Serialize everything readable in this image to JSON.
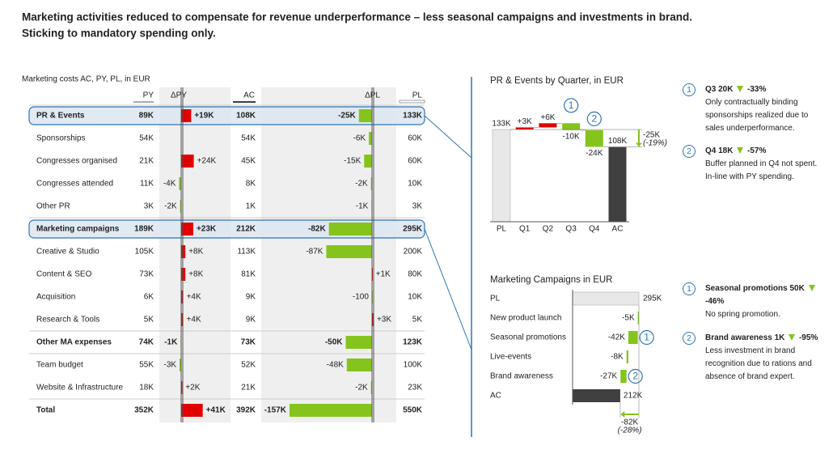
{
  "header": {
    "title": [
      "Marketing activities reduced to compensate for revenue underperformance – less seasonal campaigns and investments in brand.",
      "Sticking to mandatory spending only."
    ]
  },
  "table": {
    "subtitle": "Marketing costs AC, PY, PL, in EUR",
    "columns": [
      "PY",
      "ΔPY",
      "AC",
      "ΔPL",
      "PL"
    ],
    "rows": [
      {
        "name": "PR & Events",
        "py": "89K",
        "delta_py": 19000,
        "delta_py_label": "+19K",
        "ac": "108K",
        "delta_pl": -25000,
        "delta_pl_label": "-25K",
        "pl": "133K",
        "bold": true,
        "highlight": true
      },
      {
        "name": "Sponsorships",
        "py": "54K",
        "delta_py": null,
        "ac": "54K",
        "delta_pl": -6000,
        "delta_pl_label": "-6K",
        "pl": "60K",
        "bold": false,
        "highlight": false
      },
      {
        "name": "Congresses organised",
        "py": "21K",
        "delta_py": 24000,
        "delta_py_label": "+24K",
        "ac": "45K",
        "delta_pl": -15000,
        "delta_pl_label": "-15K",
        "pl": "60K",
        "bold": false,
        "highlight": false
      },
      {
        "name": "Congresses attended",
        "py": "11K",
        "delta_py": -4000,
        "delta_py_label": "-4K",
        "ac": "8K",
        "delta_pl": -2000,
        "delta_pl_label": "-2K",
        "pl": "10K",
        "bold": false,
        "highlight": false
      },
      {
        "name": "Other PR",
        "py": "3K",
        "delta_py": -2000,
        "delta_py_label": "-2K",
        "ac": "1K",
        "delta_pl": -1000,
        "delta_pl_label": "-1K",
        "pl": "3K",
        "bold": false,
        "highlight": false
      },
      {
        "name": "Marketing campaigns",
        "py": "189K",
        "delta_py": 23000,
        "delta_py_label": "+23K",
        "ac": "212K",
        "delta_pl": -82000,
        "delta_pl_label": "-82K",
        "pl": "295K",
        "bold": true,
        "highlight": true
      },
      {
        "name": "Creative & Studio",
        "py": "105K",
        "delta_py": 8000,
        "delta_py_label": "+8K",
        "ac": "113K",
        "delta_pl": -87000,
        "delta_pl_label": "-87K",
        "pl": "200K",
        "bold": false,
        "highlight": false
      },
      {
        "name": "Content & SEO",
        "py": "73K",
        "delta_py": 8000,
        "delta_py_label": "+8K",
        "ac": "81K",
        "delta_pl": 1000,
        "delta_pl_label": "+1K",
        "pl": "80K",
        "bold": false,
        "highlight": false
      },
      {
        "name": "Acquisition",
        "py": "6K",
        "delta_py": 4000,
        "delta_py_label": "+4K",
        "ac": "9K",
        "delta_pl": -100,
        "delta_pl_label": "-100",
        "pl": "10K",
        "bold": false,
        "highlight": false
      },
      {
        "name": "Research & Tools",
        "py": "5K",
        "delta_py": 4000,
        "delta_py_label": "+4K",
        "ac": "9K",
        "delta_pl": 3000,
        "delta_pl_label": "+3K",
        "pl": "5K",
        "bold": false,
        "highlight": false
      },
      {
        "name": "Other MA expenses",
        "py": "74K",
        "delta_py": -1000,
        "delta_py_label": "-1K",
        "ac": "73K",
        "delta_pl": -50000,
        "delta_pl_label": "-50K",
        "pl": "123K",
        "bold": true,
        "highlight": false
      },
      {
        "name": "Team budget",
        "py": "55K",
        "delta_py": -3000,
        "delta_py_label": "-3K",
        "ac": "52K",
        "delta_pl": -48000,
        "delta_pl_label": "-48K",
        "pl": "100K",
        "bold": false,
        "highlight": false
      },
      {
        "name": "Website & Infrastructure",
        "py": "18K",
        "delta_py": 2000,
        "delta_py_label": "+2K",
        "ac": "21K",
        "delta_pl": -2000,
        "delta_pl_label": "-2K",
        "pl": "23K",
        "bold": false,
        "highlight": false
      },
      {
        "name": "Total",
        "py": "352K",
        "delta_py": 41000,
        "delta_py_label": "+41K",
        "ac": "392K",
        "delta_pl": -157000,
        "delta_pl_label": "-157K",
        "pl": "550K",
        "bold": true,
        "highlight": false
      }
    ],
    "increase_color": "#e00000",
    "decrease_color": "#84c41c"
  },
  "chart_data": [
    {
      "type": "waterfall",
      "orientation": "vertical",
      "title": "PR & Events by Quarter, in EUR",
      "categories": [
        "PL",
        "Q1",
        "Q2",
        "Q3",
        "Q4",
        "AC"
      ],
      "values": [
        133000,
        3000,
        6000,
        -10000,
        -24000,
        108000
      ],
      "value_labels": [
        "133K",
        "+3K",
        "+6K",
        "-10K",
        "-24K",
        "108K"
      ],
      "measure": [
        "absolute",
        "relative",
        "relative",
        "relative",
        "relative",
        "absolute"
      ],
      "markers": [
        null,
        null,
        null,
        "1",
        "2",
        null
      ],
      "delta": {
        "value": -25000,
        "label": "-25K",
        "percent": -19,
        "percent_label": "(-19%)"
      },
      "pl_color": "#e8e8e8",
      "ac_color": "#404040",
      "increase_color": "#e00000",
      "decrease_color": "#84c41c",
      "notes": [
        {
          "heading": "Q3 20K",
          "change": "-33%",
          "text": "Only contractually binding sponsorships realized due to sales underperformance."
        },
        {
          "heading": "Q4 18K",
          "change": "-57%",
          "text": "Buffer planned in Q4 not spent. In-line with PY spending."
        }
      ]
    },
    {
      "type": "waterfall",
      "orientation": "horizontal",
      "title": "Marketing Campaigns in EUR",
      "categories": [
        "PL",
        "New product launch",
        "Seasonal promotions",
        "Live-events",
        "Brand awareness",
        "AC"
      ],
      "values": [
        295000,
        -5000,
        -42000,
        -8000,
        -27000,
        212000
      ],
      "value_labels": [
        "295K",
        "-5K",
        "-42K",
        "-8K",
        "-27K",
        "212K"
      ],
      "measure": [
        "absolute",
        "relative",
        "relative",
        "relative",
        "relative",
        "absolute"
      ],
      "markers": [
        null,
        null,
        "1",
        null,
        "2",
        null
      ],
      "delta": {
        "value": -82000,
        "label": "-82K",
        "percent": -28,
        "percent_label": "(-28%)"
      },
      "pl_color": "#e8e8e8",
      "ac_color": "#404040",
      "increase_color": "#e00000",
      "decrease_color": "#84c41c",
      "notes": [
        {
          "heading": "Seasonal promotions 50K",
          "change": "-46%",
          "text": "No spring promotion."
        },
        {
          "heading": "Brand awareness 1K",
          "change": "-95%",
          "text": "Less investment in brand recognition due to rations and absence of brand expert."
        }
      ]
    }
  ]
}
